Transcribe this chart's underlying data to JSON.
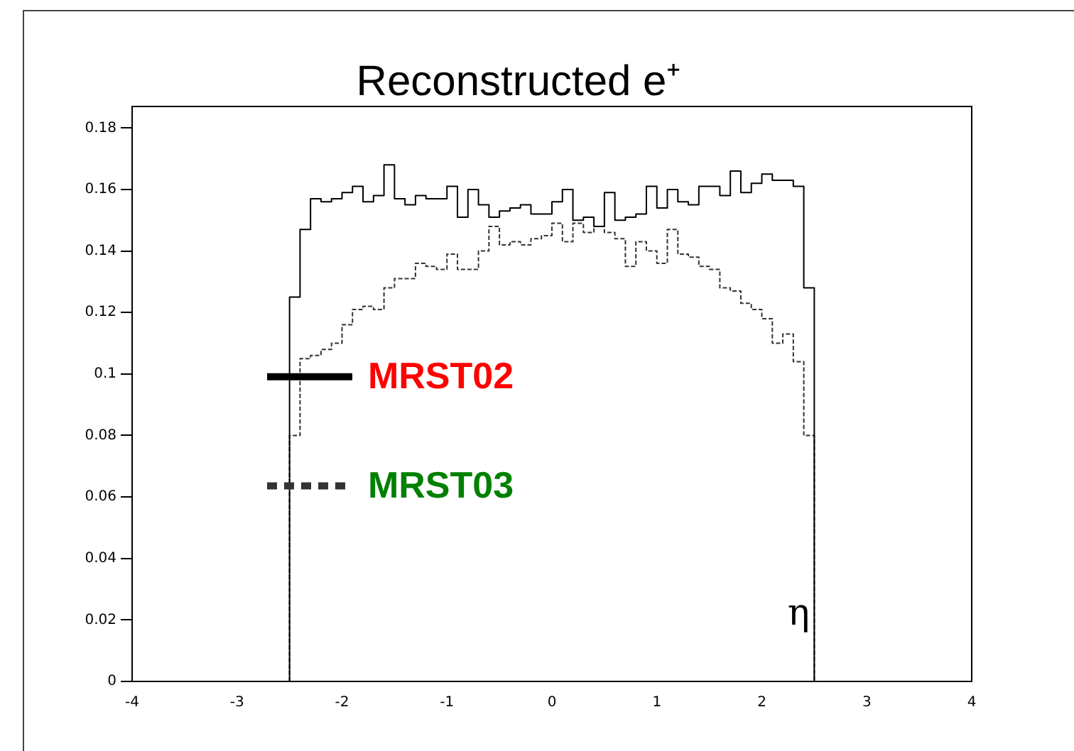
{
  "chart_data": {
    "type": "histogram",
    "title": "Reconstructed e⁺",
    "xlabel": "η",
    "bins": [
      -2.5,
      -2.4,
      -2.3,
      -2.2,
      -2.1,
      -2.0,
      -1.9,
      -1.8,
      -1.7,
      -1.6,
      -1.5,
      -1.4,
      -1.3,
      -1.2,
      -1.1,
      -1.0,
      -0.9,
      -0.8,
      -0.7,
      -0.6,
      -0.5,
      -0.4,
      -0.3,
      -0.2,
      -0.1,
      0.0,
      0.1,
      0.2,
      0.3,
      0.4,
      0.5,
      0.6,
      0.7,
      0.8,
      0.9,
      1.0,
      1.1,
      1.2,
      1.3,
      1.4,
      1.5,
      1.6,
      1.7,
      1.8,
      1.9,
      2.0,
      2.1,
      2.2,
      2.3,
      2.4,
      2.5
    ],
    "series": [
      {
        "name": "MRST02",
        "color": "#000000",
        "line_style": "solid",
        "values": [
          0.125,
          0.147,
          0.157,
          0.156,
          0.157,
          0.159,
          0.161,
          0.156,
          0.158,
          0.168,
          0.157,
          0.155,
          0.158,
          0.157,
          0.157,
          0.161,
          0.151,
          0.16,
          0.155,
          0.151,
          0.153,
          0.154,
          0.155,
          0.152,
          0.152,
          0.156,
          0.16,
          0.15,
          0.151,
          0.148,
          0.159,
          0.15,
          0.151,
          0.152,
          0.161,
          0.154,
          0.16,
          0.156,
          0.155,
          0.161,
          0.161,
          0.158,
          0.166,
          0.159,
          0.162,
          0.165,
          0.163,
          0.163,
          0.161,
          0.128
        ]
      },
      {
        "name": "MRST03",
        "color": "#333333",
        "line_style": "dotted",
        "values": [
          0.08,
          0.105,
          0.106,
          0.108,
          0.11,
          0.116,
          0.121,
          0.122,
          0.121,
          0.128,
          0.131,
          0.131,
          0.136,
          0.135,
          0.134,
          0.139,
          0.134,
          0.134,
          0.14,
          0.148,
          0.142,
          0.143,
          0.142,
          0.144,
          0.145,
          0.149,
          0.143,
          0.149,
          0.146,
          0.148,
          0.146,
          0.144,
          0.135,
          0.143,
          0.14,
          0.136,
          0.147,
          0.139,
          0.138,
          0.135,
          0.134,
          0.128,
          0.127,
          0.123,
          0.121,
          0.118,
          0.11,
          0.113,
          0.104,
          0.08
        ]
      }
    ],
    "xlim": [
      -4,
      4
    ],
    "xticks": [
      -4,
      -3,
      -2,
      -1,
      0,
      1,
      2,
      3,
      4
    ],
    "ylim": [
      0,
      0.187
    ],
    "yticks": [
      0,
      0.02,
      0.04,
      0.06,
      0.08,
      0.1,
      0.12,
      0.14,
      0.16,
      0.18
    ],
    "grid": false,
    "legend": "left"
  }
}
